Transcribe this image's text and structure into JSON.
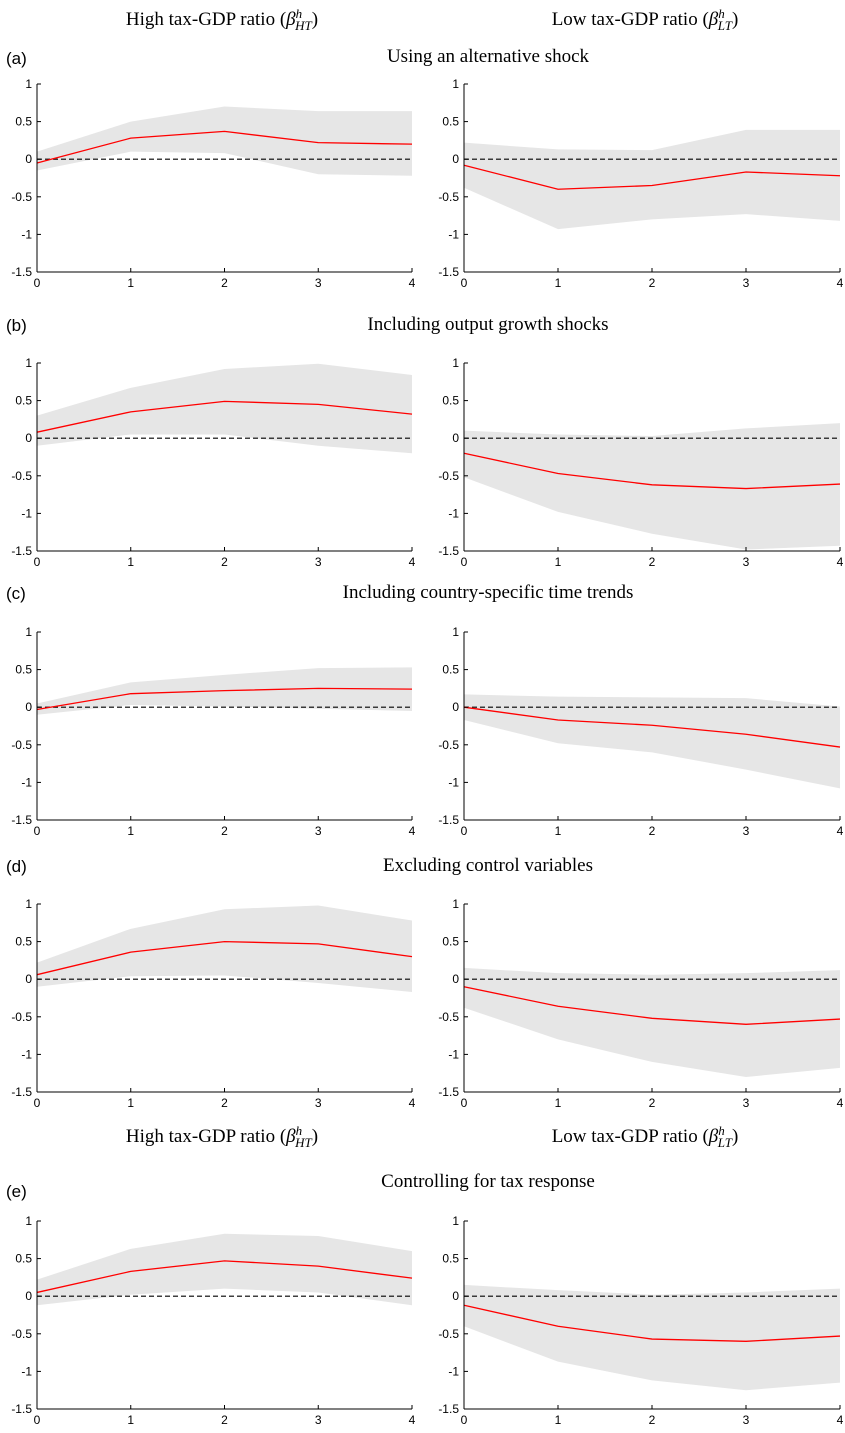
{
  "column_headers": [
    {
      "text": "High tax-GDP ratio",
      "symbol": "β",
      "superscript": "h",
      "subscript": "HT"
    },
    {
      "text": "Low tax-GDP ratio",
      "symbol": "β",
      "superscript": "h",
      "subscript": "LT"
    }
  ],
  "column_headers_lower": [
    {
      "text": "High tax-GDP ratio",
      "symbol": "β",
      "superscript": "h",
      "subscript": "HT"
    },
    {
      "text": "Low tax-GDP ratio",
      "symbol": "β",
      "superscript": "h",
      "subscript": "LT"
    }
  ],
  "rows": [
    {
      "label": "(a)",
      "title": "Using an alternative shock"
    },
    {
      "label": "(b)",
      "title": "Including output growth shocks"
    },
    {
      "label": "(c)",
      "title": "Including country-specific time trends"
    },
    {
      "label": "(d)",
      "title": "Excluding control variables"
    },
    {
      "label": "(e)",
      "title": "Controlling for tax response"
    }
  ],
  "chart_data": [
    {
      "type": "line",
      "x": [
        0,
        1,
        2,
        3,
        4
      ],
      "xlim": [
        0,
        4
      ],
      "xticks": [
        0,
        1,
        2,
        3,
        4
      ],
      "ylim": [
        -1.5,
        1
      ],
      "yticks": [
        -1.5,
        -1,
        -0.5,
        0,
        0.5,
        1
      ],
      "hline": 0,
      "series": [
        {
          "color": "#ff0000",
          "values": [
            -0.05,
            0.28,
            0.37,
            0.22,
            0.2
          ]
        }
      ],
      "band": {
        "color": "#e6e6e6",
        "lower": [
          -0.15,
          0.1,
          0.08,
          -0.2,
          -0.22
        ],
        "upper": [
          0.1,
          0.5,
          0.7,
          0.64,
          0.64
        ]
      }
    },
    {
      "type": "line",
      "x": [
        0,
        1,
        2,
        3,
        4
      ],
      "xlim": [
        0,
        4
      ],
      "xticks": [
        0,
        1,
        2,
        3,
        4
      ],
      "ylim": [
        -1.5,
        1
      ],
      "yticks": [
        -1.5,
        -1,
        -0.5,
        0,
        0.5,
        1
      ],
      "hline": 0,
      "series": [
        {
          "color": "#ff0000",
          "values": [
            -0.08,
            -0.4,
            -0.35,
            -0.17,
            -0.22
          ]
        }
      ],
      "band": {
        "color": "#e6e6e6",
        "lower": [
          -0.38,
          -0.93,
          -0.8,
          -0.73,
          -0.82
        ],
        "upper": [
          0.22,
          0.13,
          0.12,
          0.39,
          0.39
        ]
      }
    },
    {
      "type": "line",
      "x": [
        0,
        1,
        2,
        3,
        4
      ],
      "xlim": [
        0,
        4
      ],
      "xticks": [
        0,
        1,
        2,
        3,
        4
      ],
      "ylim": [
        -1.5,
        1
      ],
      "yticks": [
        -1.5,
        -1,
        -0.5,
        0,
        0.5,
        1
      ],
      "hline": 0,
      "series": [
        {
          "color": "#ff0000",
          "values": [
            0.08,
            0.35,
            0.49,
            0.45,
            0.32
          ]
        }
      ],
      "band": {
        "color": "#e6e6e6",
        "lower": [
          -0.1,
          0.05,
          0.05,
          -0.1,
          -0.2
        ],
        "upper": [
          0.3,
          0.67,
          0.92,
          0.99,
          0.84
        ]
      }
    },
    {
      "type": "line",
      "x": [
        0,
        1,
        2,
        3,
        4
      ],
      "xlim": [
        0,
        4
      ],
      "xticks": [
        0,
        1,
        2,
        3,
        4
      ],
      "ylim": [
        -1.5,
        1
      ],
      "yticks": [
        -1.5,
        -1,
        -0.5,
        0,
        0.5,
        1
      ],
      "hline": 0,
      "series": [
        {
          "color": "#ff0000",
          "values": [
            -0.2,
            -0.47,
            -0.62,
            -0.67,
            -0.61
          ]
        }
      ],
      "band": {
        "color": "#e6e6e6",
        "lower": [
          -0.52,
          -0.98,
          -1.27,
          -1.48,
          -1.43
        ],
        "upper": [
          0.1,
          0.05,
          0.03,
          0.13,
          0.2
        ]
      }
    },
    {
      "type": "line",
      "x": [
        0,
        1,
        2,
        3,
        4
      ],
      "xlim": [
        0,
        4
      ],
      "xticks": [
        0,
        1,
        2,
        3,
        4
      ],
      "ylim": [
        -1.5,
        1
      ],
      "yticks": [
        -1.5,
        -1,
        -0.5,
        0,
        0.5,
        1
      ],
      "hline": 0,
      "series": [
        {
          "color": "#ff0000",
          "values": [
            -0.03,
            0.18,
            0.22,
            0.25,
            0.24
          ]
        }
      ],
      "band": {
        "color": "#e6e6e6",
        "lower": [
          -0.1,
          0.03,
          0.01,
          -0.02,
          -0.05
        ],
        "upper": [
          0.05,
          0.33,
          0.43,
          0.52,
          0.53
        ]
      }
    },
    {
      "type": "line",
      "x": [
        0,
        1,
        2,
        3,
        4
      ],
      "xlim": [
        0,
        4
      ],
      "xticks": [
        0,
        1,
        2,
        3,
        4
      ],
      "ylim": [
        -1.5,
        1
      ],
      "yticks": [
        -1.5,
        -1,
        -0.5,
        0,
        0.5,
        1
      ],
      "hline": 0,
      "series": [
        {
          "color": "#ff0000",
          "values": [
            0,
            -0.17,
            -0.24,
            -0.36,
            -0.53
          ]
        }
      ],
      "band": {
        "color": "#e6e6e6",
        "lower": [
          -0.17,
          -0.48,
          -0.6,
          -0.83,
          -1.08
        ],
        "upper": [
          0.17,
          0.14,
          0.13,
          0.12,
          0.01
        ]
      }
    },
    {
      "type": "line",
      "x": [
        0,
        1,
        2,
        3,
        4
      ],
      "xlim": [
        0,
        4
      ],
      "xticks": [
        0,
        1,
        2,
        3,
        4
      ],
      "ylim": [
        -1.5,
        1
      ],
      "yticks": [
        -1.5,
        -1,
        -0.5,
        0,
        0.5,
        1
      ],
      "hline": 0,
      "series": [
        {
          "color": "#ff0000",
          "values": [
            0.06,
            0.36,
            0.5,
            0.47,
            0.3
          ]
        }
      ],
      "band": {
        "color": "#e6e6e6",
        "lower": [
          -0.1,
          0.04,
          0.05,
          -0.05,
          -0.17
        ],
        "upper": [
          0.22,
          0.67,
          0.93,
          0.98,
          0.78
        ]
      }
    },
    {
      "type": "line",
      "x": [
        0,
        1,
        2,
        3,
        4
      ],
      "xlim": [
        0,
        4
      ],
      "xticks": [
        0,
        1,
        2,
        3,
        4
      ],
      "ylim": [
        -1.5,
        1
      ],
      "yticks": [
        -1.5,
        -1,
        -0.5,
        0,
        0.5,
        1
      ],
      "hline": 0,
      "series": [
        {
          "color": "#ff0000",
          "values": [
            -0.1,
            -0.36,
            -0.52,
            -0.6,
            -0.53
          ]
        }
      ],
      "band": {
        "color": "#e6e6e6",
        "lower": [
          -0.38,
          -0.8,
          -1.1,
          -1.3,
          -1.18
        ],
        "upper": [
          0.15,
          0.08,
          0.06,
          0.08,
          0.12
        ]
      }
    },
    {
      "type": "line",
      "x": [
        0,
        1,
        2,
        3,
        4
      ],
      "xlim": [
        0,
        4
      ],
      "xticks": [
        0,
        1,
        2,
        3,
        4
      ],
      "ylim": [
        -1.5,
        1
      ],
      "yticks": [
        -1.5,
        -1,
        -0.5,
        0,
        0.5,
        1
      ],
      "hline": 0,
      "series": [
        {
          "color": "#ff0000",
          "values": [
            0.05,
            0.33,
            0.47,
            0.4,
            0.24
          ]
        }
      ],
      "band": {
        "color": "#e6e6e6",
        "lower": [
          -0.12,
          0.02,
          0.1,
          0.05,
          -0.12
        ],
        "upper": [
          0.22,
          0.63,
          0.83,
          0.8,
          0.6
        ]
      }
    },
    {
      "type": "line",
      "x": [
        0,
        1,
        2,
        3,
        4
      ],
      "xlim": [
        0,
        4
      ],
      "xticks": [
        0,
        1,
        2,
        3,
        4
      ],
      "ylim": [
        -1.5,
        1
      ],
      "yticks": [
        -1.5,
        -1,
        -0.5,
        0,
        0.5,
        1
      ],
      "hline": 0,
      "series": [
        {
          "color": "#ff0000",
          "values": [
            -0.12,
            -0.4,
            -0.57,
            -0.6,
            -0.53
          ]
        }
      ],
      "band": {
        "color": "#e6e6e6",
        "lower": [
          -0.4,
          -0.87,
          -1.12,
          -1.25,
          -1.15
        ],
        "upper": [
          0.15,
          0.08,
          0.02,
          0.05,
          0.1
        ]
      }
    }
  ]
}
